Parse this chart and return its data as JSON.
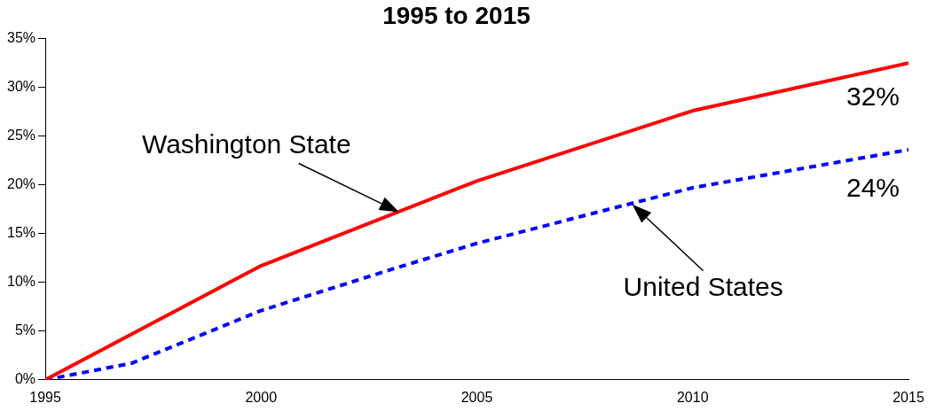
{
  "chart_data": {
    "type": "line",
    "title": "1995 to 2015",
    "xlim": [
      1995,
      2015
    ],
    "xticks": [
      1995,
      2000,
      2005,
      2010,
      2015
    ],
    "ylim": [
      0,
      35
    ],
    "yticks": [
      {
        "value": 0,
        "label": "0%"
      },
      {
        "value": 5,
        "label": "5%"
      },
      {
        "value": 10,
        "label": "10%"
      },
      {
        "value": 15,
        "label": "15%"
      },
      {
        "value": 20,
        "label": "20%"
      },
      {
        "value": 25,
        "label": "25%"
      },
      {
        "value": 30,
        "label": "30%"
      },
      {
        "value": 35,
        "label": "35%"
      }
    ],
    "grid": false,
    "legend": false,
    "marker": "none",
    "series": [
      {
        "color": "#ff0000",
        "line_style": "solid",
        "x": [
          1995,
          2000,
          2005,
          2010,
          2015
        ],
        "values": [
          0,
          11.7,
          20.4,
          27.6,
          32.5
        ]
      },
      {
        "color": "#0000ff",
        "line_style": "dashed",
        "x": [
          1995,
          1997,
          2000,
          2003,
          2005,
          2008.5,
          2010,
          2015
        ],
        "values": [
          0,
          1.7,
          7.1,
          11.3,
          14.0,
          18.0,
          19.7,
          23.6
        ]
      }
    ],
    "annotations": [
      {
        "text": "Washington State",
        "x": 2003.2,
        "y": 17.2
      },
      {
        "text": "United States",
        "x": 2008.6,
        "y": 18
      },
      {
        "text": "32%",
        "x": 2015,
        "y": 32.5
      },
      {
        "text": "24%",
        "x": 2015,
        "y": 23.6
      }
    ]
  }
}
